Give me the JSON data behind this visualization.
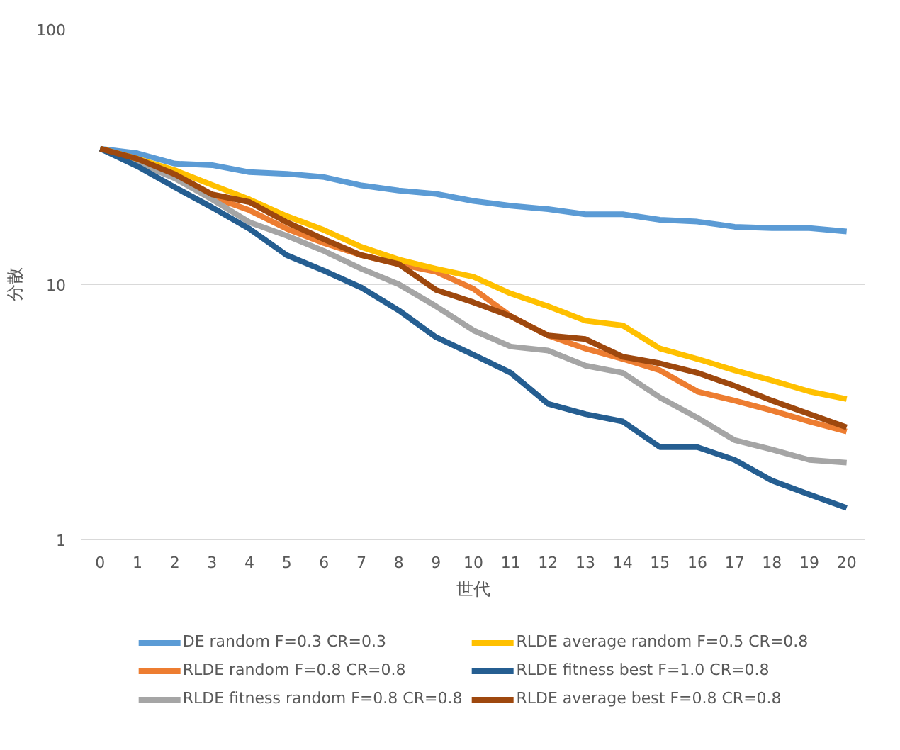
{
  "chart_data": {
    "type": "line",
    "xlabel": "世代",
    "ylabel": "分散",
    "log": "y",
    "grid": "y",
    "legend": "bottom",
    "marker": "none",
    "line_style": "solid",
    "x": [
      0,
      1,
      2,
      3,
      4,
      5,
      6,
      7,
      8,
      9,
      10,
      11,
      12,
      13,
      14,
      15,
      16,
      17,
      18,
      19,
      20
    ],
    "xlim": [
      -0.5,
      20.5
    ],
    "xticks": [
      0,
      1,
      2,
      3,
      4,
      5,
      6,
      7,
      8,
      9,
      10,
      11,
      12,
      13,
      14,
      15,
      16,
      17,
      18,
      19,
      20
    ],
    "ylim": [
      1,
      100
    ],
    "yticks": [
      1,
      10,
      100
    ],
    "series": [
      {
        "name": "DE random F=0.3 CR=0.3",
        "color": "#5b9bd5",
        "values": [
          34,
          32.6,
          29.7,
          29.3,
          27.5,
          27.1,
          26.3,
          24.4,
          23.3,
          22.6,
          21.2,
          20.3,
          19.7,
          18.8,
          18.8,
          17.9,
          17.6,
          16.8,
          16.6,
          16.6,
          16.1
        ]
      },
      {
        "name": "RLDE random F=0.8 CR=0.8",
        "color": "#ed7d31",
        "values": [
          34,
          31,
          27,
          22,
          19.5,
          16.5,
          14.5,
          13,
          12,
          11.2,
          9.6,
          7.5,
          6.3,
          5.6,
          5.1,
          4.6,
          3.8,
          3.5,
          3.2,
          2.9,
          2.65
        ]
      },
      {
        "name": "RLDE fitness random F=0.8 CR=0.8",
        "color": "#a5a5a5",
        "values": [
          34,
          30,
          26,
          21.5,
          17.5,
          15.5,
          13.5,
          11.5,
          10,
          8.2,
          6.6,
          5.7,
          5.5,
          4.8,
          4.5,
          3.6,
          3.0,
          2.45,
          2.25,
          2.05,
          2.0
        ]
      },
      {
        "name": "RLDE average random F=0.5 CR=0.8",
        "color": "#ffc000",
        "values": [
          34,
          31,
          28,
          24.5,
          21.5,
          18.5,
          16.3,
          14,
          12.5,
          11.5,
          10.7,
          9.2,
          8.2,
          7.2,
          6.9,
          5.6,
          5.1,
          4.6,
          4.2,
          3.8,
          3.55
        ]
      },
      {
        "name": "RLDE fitness best F=1.0 CR=0.8",
        "color": "#255e91",
        "values": [
          34,
          29,
          24,
          20,
          16.5,
          13,
          11.3,
          9.7,
          7.9,
          6.2,
          5.3,
          4.5,
          3.4,
          3.1,
          2.9,
          2.3,
          2.3,
          2.05,
          1.7,
          1.5,
          1.33
        ]
      },
      {
        "name": "RLDE average best F=0.8 CR=0.8",
        "color": "#9e480e",
        "values": [
          34,
          31,
          27,
          22.5,
          21,
          17.5,
          15,
          13,
          12,
          9.5,
          8.5,
          7.5,
          6.3,
          6.1,
          5.2,
          4.9,
          4.5,
          4.0,
          3.5,
          3.1,
          2.75
        ]
      }
    ]
  }
}
